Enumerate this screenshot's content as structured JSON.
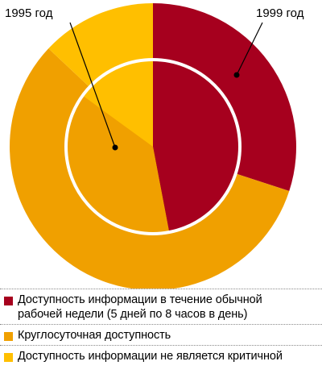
{
  "colors": {
    "work_hours": "#a6001e",
    "round_the_clock": "#f0a000",
    "not_critical": "#ffbf00"
  },
  "chart_data": {
    "type": "pie",
    "subtype": "nested-donut",
    "rings": [
      {
        "name": "1995 год",
        "position": "inner",
        "slices": [
          {
            "category": "Доступность информации в течение обычной рабочей недели (5 дней по 8 часов в день)",
            "value": 47
          },
          {
            "category": "Круглосуточная доступность",
            "value": 38
          },
          {
            "category": "Доступность информации не является критичной",
            "value": 15
          }
        ]
      },
      {
        "name": "1999 год",
        "position": "outer",
        "slices": [
          {
            "category": "Доступность информации в течение обычной рабочей недели (5 дней по 8 часов в день)",
            "value": 30
          },
          {
            "category": "Круглосуточная доступность",
            "value": 57
          },
          {
            "category": "Доступность информации не является критичной",
            "value": 13
          }
        ]
      }
    ],
    "legend_placement": "bottom"
  },
  "labels": {
    "year_1995": "1995 год",
    "year_1999": "1999 год"
  },
  "legend": [
    {
      "label_line1": "Доступность информации в течение обычной",
      "label_line2": "рабочей недели (5 дней по 8 часов в день)",
      "color_key": "work_hours"
    },
    {
      "label_line1": "Круглосуточная доступность",
      "color_key": "round_the_clock"
    },
    {
      "label_line1": "Доступность информации не является критичной",
      "color_key": "not_critical"
    }
  ]
}
